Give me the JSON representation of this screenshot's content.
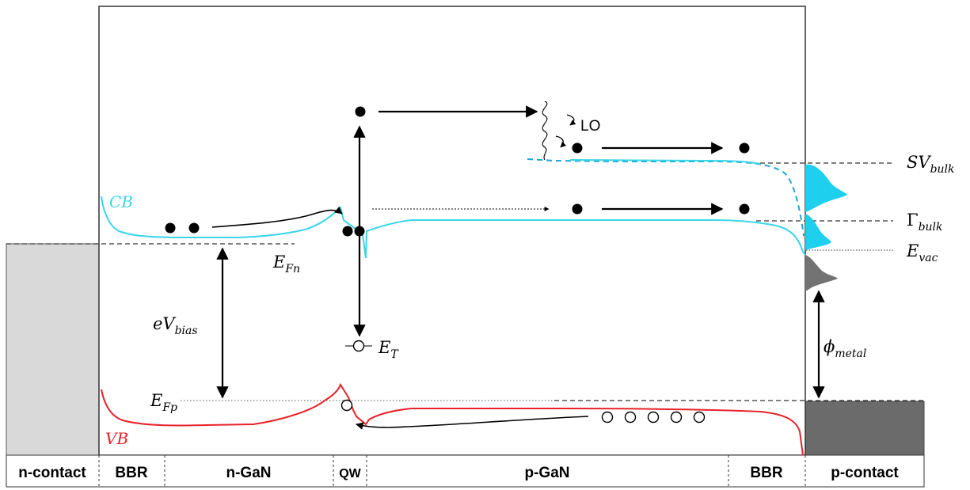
{
  "labels": {
    "cb": "CB",
    "vb": "VB",
    "efn_main": "E",
    "efn_sub": "Fn",
    "efp_main": "E",
    "efp_sub": "Fp",
    "ebias_main": "eV",
    "ebias_sub": "bias",
    "et_main": "E",
    "et_sub": "T",
    "lo": "LO",
    "sv_main": "SV",
    "sv_sub": "bulk",
    "gamma_main": "Γ",
    "gamma_sub": "bulk",
    "evac_main": "E",
    "evac_sub": "vac",
    "phi_main": "ϕ",
    "phi_sub": "metal"
  },
  "regions": [
    "n-contact",
    "BBR",
    "n-GaN",
    "QW",
    "p-GaN",
    "BBR",
    "p-contact"
  ],
  "colors": {
    "conduction_band": "#39d6e8",
    "valence_band": "#e8222a",
    "satellite_valley": "#1aa7d6",
    "n_contact_fill": "#d9d9d9",
    "p_contact_fill": "#6b6b6b",
    "emission_cyan": "#1fd0ee",
    "emission_gray": "#737373"
  }
}
